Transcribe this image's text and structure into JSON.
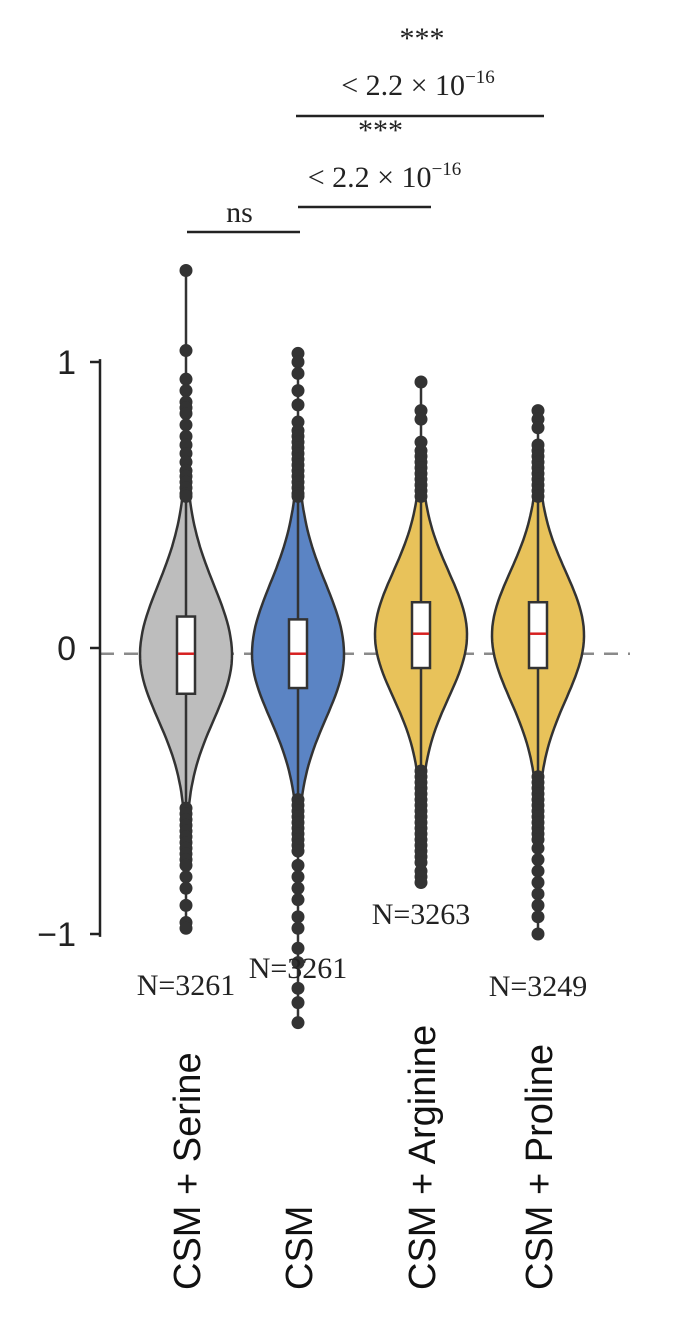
{
  "chart_data": {
    "type": "violin",
    "ylabel": "",
    "ylim": [
      -1,
      1.3
    ],
    "yticks": [
      {
        "value": 1,
        "label": "1"
      },
      {
        "value": 0,
        "label": "0"
      },
      {
        "value": -1,
        "label": "−1"
      }
    ],
    "reference_line": {
      "value": -0.02,
      "style": "dashed",
      "color": "#8a8a8a"
    },
    "categories": [
      "CSM + Serine",
      "CSM",
      "CSM + Arginine",
      "CSM + Proline"
    ],
    "series": [
      {
        "category": "CSM + Serine",
        "color": "#bdbdbd",
        "n_label": "N=3261",
        "median": -0.02,
        "q1": -0.16,
        "q3": 0.11,
        "whisker_low": -0.5,
        "whisker_high": 0.5,
        "outliers": [
          1.32,
          1.04,
          0.94,
          0.9,
          0.86,
          0.84,
          0.82,
          0.78,
          0.74,
          0.71,
          0.68,
          0.65,
          0.62,
          0.6,
          0.58,
          0.56,
          0.54,
          0.53,
          -0.56,
          -0.58,
          -0.6,
          -0.62,
          -0.64,
          -0.66,
          -0.68,
          -0.7,
          -0.72,
          -0.74,
          -0.76,
          -0.8,
          -0.84,
          -0.9,
          -0.96,
          -0.98
        ]
      },
      {
        "category": "CSM",
        "color": "#5b84c4",
        "n_label": "N=3261",
        "median": -0.02,
        "q1": -0.14,
        "q3": 0.1,
        "whisker_low": -0.5,
        "whisker_high": 0.5,
        "outliers": [
          1.03,
          1.0,
          0.96,
          0.9,
          0.85,
          0.79,
          0.76,
          0.74,
          0.72,
          0.7,
          0.68,
          0.66,
          0.64,
          0.62,
          0.6,
          0.58,
          0.56,
          0.54,
          0.53,
          -0.53,
          -0.55,
          -0.57,
          -0.59,
          -0.61,
          -0.63,
          -0.65,
          -0.67,
          -0.69,
          -0.71,
          -0.76,
          -0.8,
          -0.84,
          -0.88,
          -0.94,
          -0.98,
          -1.05,
          -1.1,
          -1.19,
          -1.24,
          -1.31
        ]
      },
      {
        "category": "CSM + Arginine",
        "color": "#e8c25a",
        "n_label": "N=3263",
        "median": 0.05,
        "q1": -0.07,
        "q3": 0.16,
        "whisker_low": -0.41,
        "whisker_high": 0.51,
        "outliers": [
          0.93,
          0.83,
          0.8,
          0.72,
          0.69,
          0.67,
          0.65,
          0.63,
          0.61,
          0.59,
          0.57,
          0.55,
          0.53,
          -0.43,
          -0.45,
          -0.47,
          -0.49,
          -0.51,
          -0.53,
          -0.55,
          -0.57,
          -0.59,
          -0.61,
          -0.63,
          -0.65,
          -0.67,
          -0.69,
          -0.71,
          -0.73,
          -0.75,
          -0.78,
          -0.8,
          -0.82
        ]
      },
      {
        "category": "CSM + Proline",
        "color": "#e8c25a",
        "n_label": "N=3249",
        "median": 0.05,
        "q1": -0.07,
        "q3": 0.16,
        "whisker_low": -0.43,
        "whisker_high": 0.51,
        "outliers": [
          0.83,
          0.8,
          0.77,
          0.71,
          0.69,
          0.67,
          0.65,
          0.63,
          0.61,
          0.59,
          0.57,
          0.55,
          0.53,
          -0.45,
          -0.47,
          -0.49,
          -0.51,
          -0.53,
          -0.55,
          -0.57,
          -0.59,
          -0.61,
          -0.63,
          -0.65,
          -0.67,
          -0.7,
          -0.74,
          -0.78,
          -0.82,
          -0.86,
          -0.9,
          -0.94,
          -1.0
        ]
      }
    ],
    "significance": [
      {
        "from": "CSM + Serine",
        "to": "CSM",
        "stars": "ns",
        "p_label": ""
      },
      {
        "from": "CSM",
        "to": "CSM + Arginine",
        "stars": "***",
        "p_label": "< 2.2 × 10",
        "p_exp": "−16"
      },
      {
        "from": "CSM",
        "to": "CSM + Proline",
        "stars": "***",
        "p_label": "< 2.2 × 10",
        "p_exp": "−16"
      }
    ]
  }
}
